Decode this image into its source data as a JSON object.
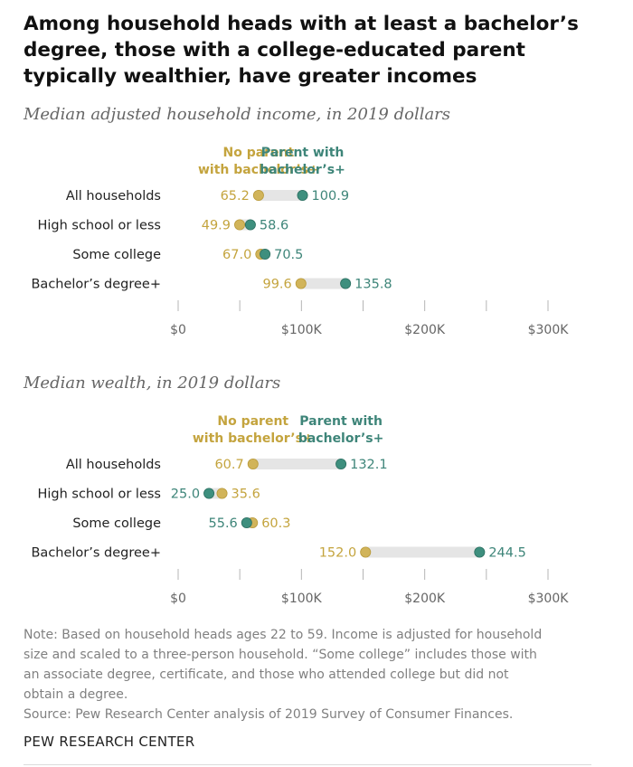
{
  "title": "Among household heads with at least a bachelor’s degree, those with a college-educated parent typically wealthier, have greater incomes",
  "colors": {
    "no_parent": "#D1B45A",
    "parent": "#3E8F7E",
    "no_parent_text": "#C4A43E",
    "parent_text": "#3E8579",
    "bar": "#e5e5e5",
    "tick": "#b5b5b5",
    "axis_label": "#666666"
  },
  "chart_data": [
    {
      "type": "dot-range",
      "title": "Median adjusted household income, in 2019 dollars",
      "legend": {
        "no_parent": [
          "No parent",
          "with bachelor’s+"
        ],
        "parent": [
          "Parent with",
          "bachelor’s+"
        ]
      },
      "categories": [
        "All households",
        "High school or less",
        "Some college",
        "Bachelor’s degree+"
      ],
      "series": [
        {
          "name": "No parent with bachelor’s+",
          "values": [
            65.2,
            49.9,
            67.0,
            99.6
          ],
          "labels": [
            "65.2",
            "49.9",
            "67.0",
            "99.6"
          ]
        },
        {
          "name": "Parent with bachelor’s+",
          "values": [
            100.9,
            58.6,
            70.5,
            135.8
          ],
          "labels": [
            "100.9",
            "58.6",
            "70.5",
            "135.8"
          ]
        }
      ],
      "xlim": [
        0,
        300
      ],
      "ticks": [
        0,
        50,
        100,
        150,
        200,
        250,
        300
      ],
      "tick_labels": [
        "$0",
        "",
        "$100K",
        "",
        "$200K",
        "",
        "$300K"
      ]
    },
    {
      "type": "dot-range",
      "title": "Median wealth, in 2019 dollars",
      "legend": {
        "no_parent": [
          "No parent",
          "with bachelor’s+"
        ],
        "parent": [
          "Parent with",
          "bachelor’s+"
        ]
      },
      "categories": [
        "All households",
        "High school or less",
        "Some college",
        "Bachelor’s degree+"
      ],
      "series": [
        {
          "name": "No parent with bachelor’s+",
          "values": [
            60.7,
            35.6,
            60.3,
            152.0
          ],
          "labels": [
            "60.7",
            "35.6",
            "60.3",
            "152.0"
          ]
        },
        {
          "name": "Parent with bachelor’s+",
          "values": [
            132.1,
            25.0,
            55.6,
            244.5
          ],
          "labels": [
            "132.1",
            "25.0",
            "55.6",
            "244.5"
          ]
        }
      ],
      "xlim": [
        0,
        300
      ],
      "ticks": [
        0,
        50,
        100,
        150,
        200,
        250,
        300
      ],
      "tick_labels": [
        "$0",
        "",
        "$100K",
        "",
        "$200K",
        "",
        "$300K"
      ]
    }
  ],
  "note": [
    "Note: Based on household heads ages 22 to 59. Income is adjusted for household",
    "size and scaled to a three-person household. “Some college” includes those with",
    "an associate degree, certificate, and those who attended college but did not",
    "obtain a degree."
  ],
  "source": "Source: Pew Research Center analysis of 2019 Survey of Consumer Finances.",
  "brand": "PEW RESEARCH CENTER"
}
